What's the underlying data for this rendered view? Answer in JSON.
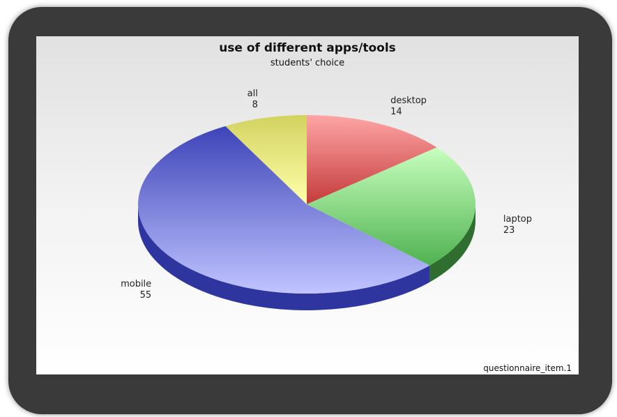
{
  "chart_data": {
    "type": "pie",
    "title": "use of different apps/tools",
    "subtitle": "students' choice",
    "footer": "questionnaire_item.1",
    "slices": [
      {
        "label": "desktop",
        "value": 14,
        "color_top": "#ffa5a5",
        "color_bottom": "#c43b3b",
        "color_side": "#8b2222"
      },
      {
        "label": "laptop",
        "value": 23,
        "color_top": "#c8ffc0",
        "color_bottom": "#4fb24f",
        "color_side": "#2f6e2f"
      },
      {
        "label": "mobile",
        "value": 55,
        "color_top": "#3d44b8",
        "color_bottom": "#c0c4ff",
        "color_side": "#2e359e"
      },
      {
        "label": "all",
        "value": 8,
        "color_top": "#d2d260",
        "color_bottom": "#ffffaa",
        "color_side": "#9a9a3a"
      }
    ]
  }
}
